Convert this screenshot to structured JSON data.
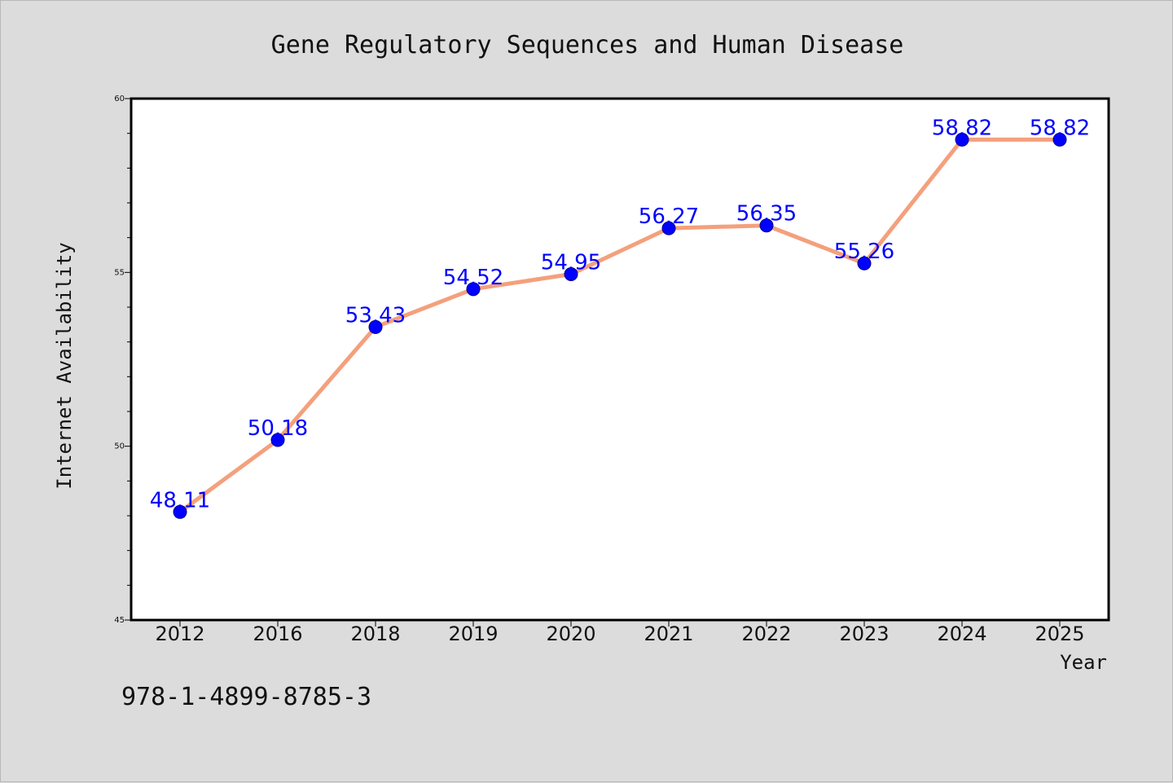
{
  "chart_data": {
    "type": "line",
    "title": "Gene Regulatory Sequences and Human Disease",
    "xlabel": "Year",
    "ylabel": "Internet Availability",
    "categories": [
      "2012",
      "2016",
      "2018",
      "2019",
      "2020",
      "2021",
      "2022",
      "2023",
      "2024",
      "2025"
    ],
    "series": [
      {
        "values": [
          48.11,
          50.18,
          53.43,
          54.52,
          54.95,
          56.27,
          56.35,
          55.26,
          58.82,
          58.82
        ],
        "labels": [
          "48.11",
          "50.18",
          "53.43",
          "54.52",
          "54.95",
          "56.27",
          "56.35",
          "55.26",
          "58.82",
          "58.82"
        ]
      }
    ],
    "ylim": [
      45,
      60
    ],
    "yticks": [
      "45",
      "50",
      "55",
      "60"
    ],
    "grid": false,
    "colors": {
      "line": "#f4a07c",
      "marker": "#0000ff",
      "label": "#0000ff",
      "plot_bg": "#ffffff",
      "figure_bg": "#dcdcdc"
    }
  },
  "footer": {
    "isbn": "978-1-4899-8785-3"
  }
}
